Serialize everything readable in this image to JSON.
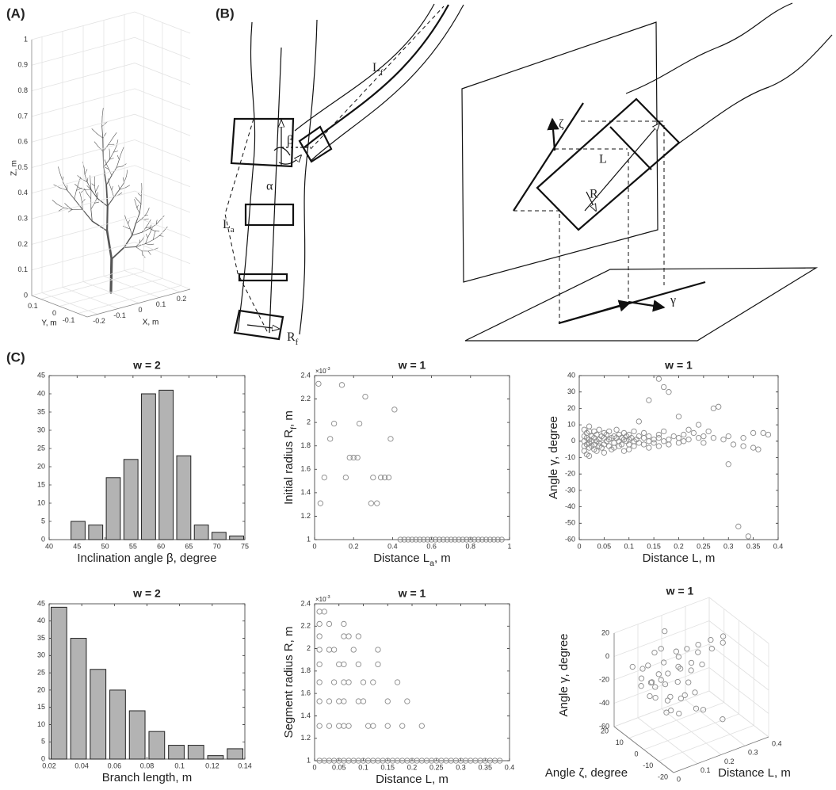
{
  "panel_labels": [
    "(A)",
    "(B)",
    "(C)"
  ],
  "diagram": {
    "L_f": [
      "L",
      "f"
    ],
    "beta": "β",
    "alpha": "α",
    "L_a": [
      "L",
      "a"
    ],
    "R_f": [
      "R",
      "f"
    ],
    "zeta": "ζ",
    "L": "L",
    "R": "R",
    "gamma": "γ"
  },
  "chart_data": [
    {
      "type": "tree3d",
      "xlabel": "X, m",
      "ylabel": "Y, m",
      "zlabel": "Z, m",
      "xlim": [
        -0.25,
        0.25
      ],
      "ylim": [
        -0.15,
        0.15
      ],
      "zlim": [
        0,
        1
      ],
      "xticks": [
        -0.2,
        -0.1,
        0,
        0.1,
        0.2
      ],
      "yticks": [
        -0.1,
        0,
        0.1
      ],
      "zticks": [
        0,
        0.1,
        0.2,
        0.3,
        0.4,
        0.5,
        0.6,
        0.7,
        0.8,
        0.9,
        1
      ],
      "grid": true
    },
    {
      "type": "histogram",
      "title": "w = 2",
      "xlabel": "Inclination angle β, degree",
      "color": "#b3b3b3",
      "bins": [
        43.6,
        46.75,
        49.9,
        53.05,
        56.2,
        59.35,
        62.5,
        65.65,
        68.8,
        71.95,
        75.1
      ],
      "values": [
        5,
        4,
        17,
        22,
        40,
        41,
        23,
        4,
        2,
        1
      ],
      "xlim": [
        40,
        75
      ],
      "xticks": [
        40,
        45,
        50,
        55,
        60,
        65,
        70,
        75
      ],
      "ylim": [
        0,
        45
      ],
      "yticks": [
        0,
        5,
        10,
        15,
        20,
        25,
        30,
        35,
        40,
        45
      ]
    },
    {
      "type": "scatter",
      "title": "w = 1",
      "xlabel": [
        "Distance L",
        "a",
        ", m"
      ],
      "ylabel": [
        "Initial radius R",
        "f",
        ", m"
      ],
      "exponent_label": [
        "×10",
        "-3"
      ],
      "color": "#8a8a8a",
      "x": [
        0.02,
        0.14,
        0.26,
        0.41,
        0.1,
        0.23,
        0.08,
        0.39,
        0.18,
        0.2,
        0.22,
        0.05,
        0.16,
        0.3,
        0.34,
        0.36,
        0.38,
        0.03,
        0.29,
        0.32,
        0.44,
        0.46,
        0.48,
        0.5,
        0.52,
        0.54,
        0.56,
        0.58,
        0.6,
        0.62,
        0.64,
        0.66,
        0.68,
        0.7,
        0.72,
        0.74,
        0.76,
        0.78,
        0.8,
        0.82,
        0.84,
        0.86,
        0.88,
        0.9,
        0.92,
        0.94,
        0.96
      ],
      "values": [
        2.33,
        2.32,
        2.22,
        2.11,
        1.99,
        1.99,
        1.86,
        1.86,
        1.7,
        1.7,
        1.7,
        1.53,
        1.53,
        1.53,
        1.53,
        1.53,
        1.53,
        1.31,
        1.31,
        1.31,
        1,
        1,
        1,
        1,
        1,
        1,
        1,
        1,
        1,
        1,
        1,
        1,
        1,
        1,
        1,
        1,
        1,
        1,
        1,
        1,
        1,
        1,
        1,
        1,
        1,
        1,
        1
      ],
      "xlim": [
        0,
        1
      ],
      "xticks": [
        0,
        0.2,
        0.4,
        0.6,
        0.8,
        1
      ],
      "ylim": [
        1,
        2.4
      ],
      "yticks": [
        1,
        1.2,
        1.4,
        1.6,
        1.8,
        2,
        2.2,
        2.4
      ]
    },
    {
      "type": "scatter",
      "title": "w = 1",
      "xlabel": "Distance L, m",
      "ylabel": "Angle γ, degree",
      "color": "#8a8a8a",
      "x": [
        0.01,
        0.01,
        0.01,
        0.01,
        0.01,
        0.015,
        0.015,
        0.015,
        0.015,
        0.02,
        0.02,
        0.02,
        0.02,
        0.02,
        0.02,
        0.025,
        0.025,
        0.025,
        0.03,
        0.03,
        0.03,
        0.03,
        0.035,
        0.035,
        0.035,
        0.04,
        0.04,
        0.04,
        0.04,
        0.045,
        0.045,
        0.05,
        0.05,
        0.05,
        0.05,
        0.055,
        0.055,
        0.06,
        0.06,
        0.06,
        0.065,
        0.065,
        0.07,
        0.07,
        0.07,
        0.075,
        0.075,
        0.08,
        0.08,
        0.08,
        0.085,
        0.085,
        0.09,
        0.09,
        0.09,
        0.095,
        0.095,
        0.1,
        0.1,
        0.1,
        0.1,
        0.105,
        0.11,
        0.11,
        0.11,
        0.115,
        0.12,
        0.12,
        0.13,
        0.13,
        0.13,
        0.14,
        0.14,
        0.14,
        0.15,
        0.15,
        0.16,
        0.16,
        0.16,
        0.17,
        0.17,
        0.18,
        0.18,
        0.19,
        0.2,
        0.2,
        0.21,
        0.21,
        0.22,
        0.24,
        0.25,
        0.25,
        0.27,
        0.29,
        0.3,
        0.33,
        0.16,
        0.17,
        0.18,
        0.14,
        0.12,
        0.28,
        0.27,
        0.2,
        0.3,
        0.32,
        0.34,
        0.33,
        0.35,
        0.36,
        0.31,
        0.38,
        0.37,
        0.35,
        0.26,
        0.22,
        0.24,
        0.23
      ],
      "values": [
        -3,
        0,
        3,
        7,
        -6,
        2,
        -2,
        5,
        -8,
        1,
        -4,
        6,
        -1,
        9,
        -9,
        3,
        -3,
        0,
        2,
        -5,
        6,
        -2,
        0,
        4,
        -6,
        1,
        -3,
        7,
        -1,
        -4,
        3,
        2,
        -2,
        5,
        -7,
        0,
        4,
        -3,
        1,
        6,
        2,
        -5,
        -1,
        3,
        -4,
        2,
        7,
        0,
        -3,
        4,
        -2,
        2,
        1,
        -6,
        5,
        0,
        3,
        -2,
        1,
        4,
        -5,
        2,
        0,
        -3,
        6,
        1,
        -1,
        3,
        2,
        -2,
        5,
        0,
        3,
        -4,
        1,
        -1,
        2,
        -3,
        4,
        0,
        6,
        1,
        -2,
        3,
        -1,
        2,
        0,
        4,
        1,
        2,
        -1,
        3,
        2,
        1,
        3,
        2,
        38,
        33,
        30,
        25,
        12,
        21,
        20,
        15,
        -14,
        -52,
        -58,
        -3,
        -4,
        -5,
        -2,
        4,
        5,
        5,
        6,
        7,
        10,
        5
      ],
      "xlim": [
        0,
        0.4
      ],
      "xticks": [
        0,
        0.05,
        0.1,
        0.15,
        0.2,
        0.25,
        0.3,
        0.35,
        0.4
      ],
      "ylim": [
        -60,
        40
      ],
      "yticks": [
        -60,
        -50,
        -40,
        -30,
        -20,
        -10,
        0,
        10,
        20,
        30,
        40
      ]
    },
    {
      "type": "histogram",
      "title": "w = 2",
      "xlabel": "Branch length, m",
      "color": "#b3b3b3",
      "bins": [
        0.02,
        0.032,
        0.044,
        0.056,
        0.068,
        0.08,
        0.092,
        0.104,
        0.116,
        0.128,
        0.14
      ],
      "values": [
        44,
        35,
        26,
        20,
        14,
        8,
        4,
        4,
        1,
        3
      ],
      "xlim": [
        0.02,
        0.14
      ],
      "xticks": [
        0.02,
        0.04,
        0.06,
        0.08,
        0.1,
        0.12,
        0.14
      ],
      "ylim": [
        0,
        45
      ],
      "yticks": [
        0,
        5,
        10,
        15,
        20,
        25,
        30,
        35,
        40,
        45
      ]
    },
    {
      "type": "scatter",
      "title": "w = 1",
      "xlabel": "Distance L, m",
      "ylabel": "Segment radius R, m",
      "exponent_label": [
        "×10",
        "-3"
      ],
      "color": "#8a8a8a",
      "x": [
        0.01,
        0.02,
        0.01,
        0.03,
        0.06,
        0.01,
        0.06,
        0.07,
        0.09,
        0.01,
        0.03,
        0.04,
        0.08,
        0.13,
        0.01,
        0.05,
        0.06,
        0.09,
        0.13,
        0.01,
        0.04,
        0.06,
        0.07,
        0.1,
        0.12,
        0.17,
        0.01,
        0.03,
        0.05,
        0.06,
        0.09,
        0.1,
        0.15,
        0.19,
        0.01,
        0.03,
        0.05,
        0.06,
        0.07,
        0.11,
        0.12,
        0.15,
        0.18,
        0.22,
        0.01,
        0.02,
        0.03,
        0.04,
        0.05,
        0.06,
        0.07,
        0.08,
        0.09,
        0.1,
        0.11,
        0.12,
        0.13,
        0.14,
        0.15,
        0.16,
        0.17,
        0.18,
        0.19,
        0.2,
        0.21,
        0.22,
        0.23,
        0.24,
        0.25,
        0.26,
        0.27,
        0.28,
        0.29,
        0.3,
        0.31,
        0.32,
        0.33,
        0.34,
        0.35,
        0.36,
        0.37,
        0.38
      ],
      "values": [
        2.33,
        2.33,
        2.22,
        2.22,
        2.22,
        2.11,
        2.11,
        2.11,
        2.11,
        1.99,
        1.99,
        1.99,
        1.99,
        1.99,
        1.86,
        1.86,
        1.86,
        1.86,
        1.86,
        1.7,
        1.7,
        1.7,
        1.7,
        1.7,
        1.7,
        1.7,
        1.53,
        1.53,
        1.53,
        1.53,
        1.53,
        1.53,
        1.53,
        1.53,
        1.31,
        1.31,
        1.31,
        1.31,
        1.31,
        1.31,
        1.31,
        1.31,
        1.31,
        1.31,
        1,
        1,
        1,
        1,
        1,
        1,
        1,
        1,
        1,
        1,
        1,
        1,
        1,
        1,
        1,
        1,
        1,
        1,
        1,
        1,
        1,
        1,
        1,
        1,
        1,
        1,
        1,
        1,
        1,
        1,
        1,
        1,
        1,
        1,
        1,
        1,
        1,
        1
      ],
      "xlim": [
        0,
        0.4
      ],
      "xticks": [
        0,
        0.05,
        0.1,
        0.15,
        0.2,
        0.25,
        0.3,
        0.35,
        0.4
      ],
      "ylim": [
        1,
        2.4
      ],
      "yticks": [
        1,
        1.2,
        1.4,
        1.6,
        1.8,
        2,
        2.2,
        2.4
      ]
    },
    {
      "type": "scatter3d",
      "title": "w = 1",
      "xlabel": "Distance L, m",
      "ylabel": "Angle ζ, degree",
      "zlabel": "Angle γ, degree",
      "color": "#8a8a8a",
      "x": [
        0.02,
        0.03,
        0.04,
        0.05,
        0.06,
        0.07,
        0.08,
        0.09,
        0.1,
        0.11,
        0.12,
        0.13,
        0.14,
        0.15,
        0.16,
        0.17,
        0.18,
        0.19,
        0.2,
        0.22,
        0.24,
        0.26,
        0.28,
        0.3,
        0.32,
        0.34,
        0.02,
        0.04,
        0.06,
        0.08,
        0.1,
        0.12,
        0.14,
        0.05,
        0.07,
        0.09,
        0.03,
        0.11,
        0.13,
        0.15,
        0.17,
        0.25,
        0.3,
        0.2,
        0.06
      ],
      "y": [
        5,
        -3,
        8,
        -8,
        2,
        12,
        -5,
        0,
        6,
        -10,
        3,
        -2,
        9,
        -6,
        1,
        4,
        -3,
        7,
        0,
        -4,
        2,
        5,
        -1,
        3,
        -2,
        1,
        -12,
        14,
        -14,
        10,
        -9,
        12,
        -12,
        4,
        -7,
        9,
        0,
        6,
        -1,
        10,
        -8,
        0,
        -5,
        3,
        -2
      ],
      "z": [
        -12,
        -15,
        -10,
        -14,
        -13,
        -8,
        -16,
        -11,
        -9,
        -12,
        -7,
        -10,
        -5,
        -8,
        -4,
        -6,
        -3,
        -2,
        -1,
        0,
        3,
        5,
        6,
        8,
        9,
        10,
        -18,
        -6,
        -20,
        -4,
        -15,
        2,
        -10,
        -22,
        -25,
        -18,
        -5,
        12,
        15,
        20,
        -30,
        -45,
        -52,
        8,
        -3
      ],
      "xlim": [
        0,
        0.4
      ],
      "xticks": [
        0,
        0.1,
        0.2,
        0.3,
        0.4
      ],
      "ylim": [
        -20,
        20
      ],
      "yticks": [
        -20,
        -10,
        0,
        10,
        20
      ],
      "zlim": [
        -60,
        20
      ],
      "zticks": [
        -60,
        -40,
        -20,
        0,
        20
      ],
      "grid": true
    }
  ]
}
